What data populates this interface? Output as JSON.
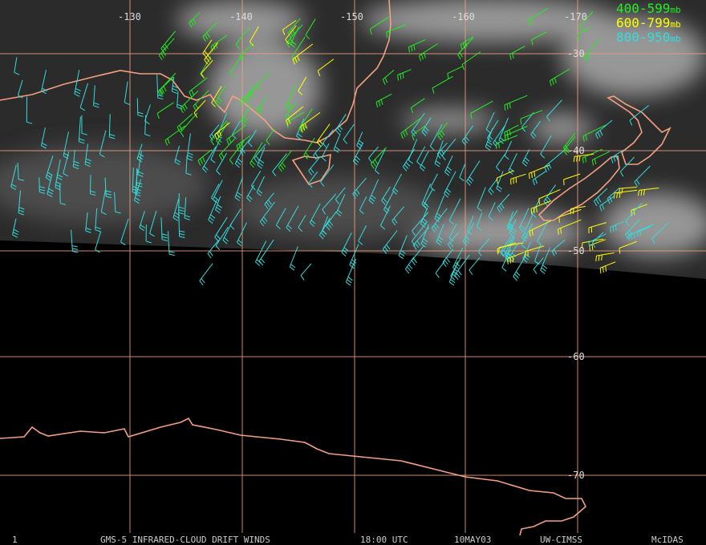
{
  "map": {
    "longitude_labels": [
      "-130",
      "-140",
      "-150",
      "-160",
      "-170"
    ],
    "latitude_labels": [
      "-30",
      "-40",
      "-50",
      "-60",
      "-70"
    ],
    "legend": [
      {
        "range": "400-599",
        "unit": "mb",
        "color": "#22ee22"
      },
      {
        "range": "600-799",
        "unit": "mb",
        "color": "#ffff00"
      },
      {
        "range": "800-950",
        "unit": "mb",
        "color": "#33dddd"
      }
    ]
  },
  "footer": {
    "frame": "1",
    "title": "GMS-5 INFRARED-CLOUD DRIFT WINDS",
    "time": "18:00 UTC",
    "date": "10MAY03",
    "source": "UW-CIMSS",
    "software": "McIDAS"
  }
}
